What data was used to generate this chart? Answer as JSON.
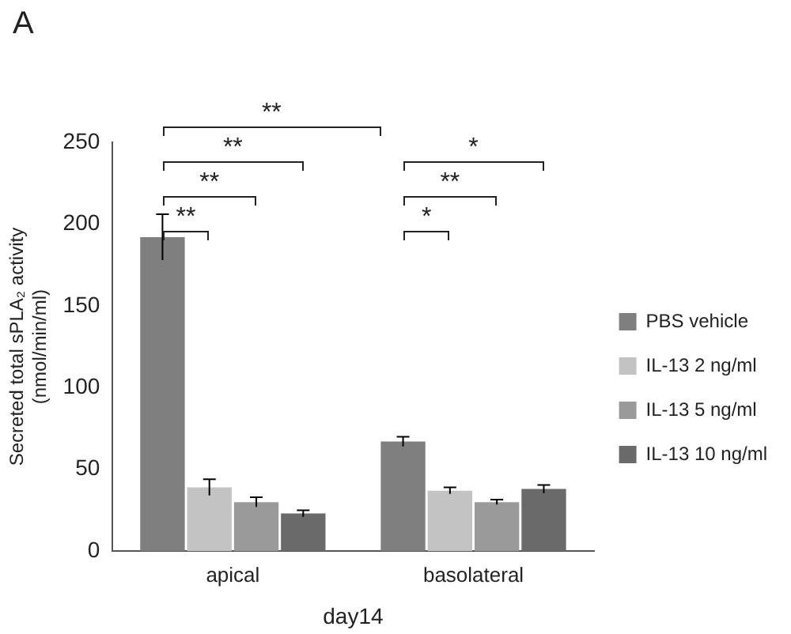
{
  "chart_data": {
    "type": "bar",
    "categories": [
      "apical",
      "basolateral"
    ],
    "xlabel": "day14",
    "ylabel": "Secreted total sPLA₂ activity\n(nmol/min/ml)",
    "ylim": [
      0,
      250
    ],
    "yticks": [
      0,
      50,
      100,
      150,
      200,
      250
    ],
    "grid": false,
    "legend": "right",
    "series": [
      {
        "name": "PBS vehicle",
        "color": "#7f7f7f",
        "values": [
          192,
          67
        ],
        "errors": [
          14,
          3
        ]
      },
      {
        "name": "IL-13 2 ng/ml",
        "color": "#c3c3c3",
        "values": [
          39,
          37
        ],
        "errors": [
          5,
          2
        ]
      },
      {
        "name": "IL-13 5 ng/ml",
        "color": "#9a9a9a",
        "values": [
          30,
          30
        ],
        "errors": [
          3,
          1.5
        ]
      },
      {
        "name": "IL-13 10 ng/ml",
        "color": "#6a6a6a",
        "values": [
          23,
          38
        ],
        "errors": [
          2,
          2.5
        ]
      }
    ],
    "annotations": [
      "A",
      "**",
      "**",
      "**",
      "**",
      "*",
      "**",
      "*"
    ]
  }
}
